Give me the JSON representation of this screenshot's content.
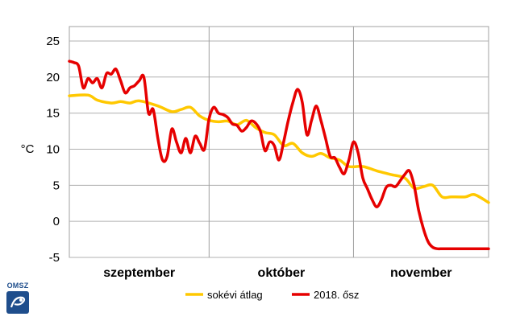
{
  "logo": {
    "text": "OMSZ",
    "icon": "omsz-logo-icon"
  },
  "chart_data": {
    "type": "line",
    "title": "",
    "xlabel": "",
    "ylabel": "°C",
    "ylim": [
      -5,
      27
    ],
    "yticks": [
      -5,
      0,
      5,
      10,
      15,
      20,
      25
    ],
    "x_start": "2018-09-01",
    "x_end": "2018-11-30",
    "x_month_labels": [
      "szeptember",
      "október",
      "november"
    ],
    "x_month_boundaries": [
      "2018-10-01",
      "2018-11-01"
    ],
    "grid": true,
    "legend_position": "bottom",
    "series": [
      {
        "name": "sokévi átlag",
        "color": "#ffc800",
        "x": [
          "2018-09-01",
          "2018-09-05",
          "2018-09-07",
          "2018-09-10",
          "2018-09-12",
          "2018-09-14",
          "2018-09-16",
          "2018-09-20",
          "2018-09-23",
          "2018-09-25",
          "2018-09-27",
          "2018-09-29",
          "2018-10-01",
          "2018-10-03",
          "2018-10-05",
          "2018-10-07",
          "2018-10-09",
          "2018-10-11",
          "2018-10-13",
          "2018-10-15",
          "2018-10-17",
          "2018-10-19",
          "2018-10-21",
          "2018-10-23",
          "2018-10-25",
          "2018-10-27",
          "2018-10-29",
          "2018-10-31",
          "2018-11-03",
          "2018-11-06",
          "2018-11-09",
          "2018-11-12",
          "2018-11-14",
          "2018-11-16",
          "2018-11-18",
          "2018-11-20",
          "2018-11-22",
          "2018-11-25",
          "2018-11-27",
          "2018-11-30"
        ],
        "y": [
          17.4,
          17.5,
          16.8,
          16.4,
          16.6,
          16.4,
          16.7,
          16.0,
          15.2,
          15.5,
          15.8,
          14.6,
          14.0,
          13.8,
          13.9,
          13.4,
          14.0,
          13.0,
          12.3,
          12.0,
          10.5,
          10.8,
          9.5,
          9.0,
          9.4,
          8.8,
          8.5,
          7.6,
          7.6,
          7.0,
          6.5,
          6.0,
          4.6,
          4.8,
          5.0,
          3.4,
          3.4,
          3.4,
          3.7,
          2.6
        ]
      },
      {
        "name": "2018. ősz",
        "color": "#e60000",
        "x": [
          "2018-09-01",
          "2018-09-02",
          "2018-09-03",
          "2018-09-04",
          "2018-09-05",
          "2018-09-06",
          "2018-09-07",
          "2018-09-08",
          "2018-09-09",
          "2018-09-10",
          "2018-09-11",
          "2018-09-12",
          "2018-09-13",
          "2018-09-14",
          "2018-09-15",
          "2018-09-16",
          "2018-09-17",
          "2018-09-18",
          "2018-09-19",
          "2018-09-20",
          "2018-09-21",
          "2018-09-22",
          "2018-09-23",
          "2018-09-24",
          "2018-09-25",
          "2018-09-26",
          "2018-09-27",
          "2018-09-28",
          "2018-09-29",
          "2018-09-30",
          "2018-10-01",
          "2018-10-02",
          "2018-10-03",
          "2018-10-04",
          "2018-10-05",
          "2018-10-06",
          "2018-10-07",
          "2018-10-08",
          "2018-10-09",
          "2018-10-10",
          "2018-10-11",
          "2018-10-12",
          "2018-10-13",
          "2018-10-14",
          "2018-10-15",
          "2018-10-16",
          "2018-10-17",
          "2018-10-18",
          "2018-10-19",
          "2018-10-20",
          "2018-10-21",
          "2018-10-22",
          "2018-10-23",
          "2018-10-24",
          "2018-10-25",
          "2018-10-26",
          "2018-10-27",
          "2018-10-28",
          "2018-10-29",
          "2018-10-30",
          "2018-10-31",
          "2018-11-01",
          "2018-11-02",
          "2018-11-03",
          "2018-11-04",
          "2018-11-05",
          "2018-11-06",
          "2018-11-07",
          "2018-11-08",
          "2018-11-09",
          "2018-11-10",
          "2018-11-11",
          "2018-11-12",
          "2018-11-13",
          "2018-11-14",
          "2018-11-15",
          "2018-11-16",
          "2018-11-17",
          "2018-11-18",
          "2018-11-19",
          "2018-11-20",
          "2018-11-21",
          "2018-11-22",
          "2018-11-23",
          "2018-11-24",
          "2018-11-25",
          "2018-11-26",
          "2018-11-27",
          "2018-11-28",
          "2018-11-29",
          "2018-11-30"
        ],
        "y": [
          22.2,
          22.0,
          21.5,
          18.5,
          19.8,
          19.2,
          19.8,
          18.5,
          20.5,
          20.4,
          21.1,
          19.5,
          17.8,
          18.5,
          18.8,
          19.5,
          20.0,
          15.0,
          15.5,
          11.5,
          8.5,
          9.0,
          12.8,
          11.0,
          9.5,
          11.5,
          9.5,
          11.8,
          10.8,
          10.0,
          14.2,
          15.8,
          15.0,
          14.8,
          14.4,
          13.5,
          13.3,
          12.5,
          13.0,
          13.9,
          13.6,
          12.5,
          9.8,
          11.0,
          10.5,
          8.5,
          11.0,
          14.0,
          16.5,
          18.3,
          16.5,
          12.0,
          14.0,
          16.0,
          14.0,
          11.5,
          9.0,
          8.8,
          7.5,
          6.6,
          8.5,
          11.0,
          9.5,
          6.0,
          4.5,
          3.0,
          2.0,
          3.0,
          4.7,
          5.0,
          4.8,
          5.6,
          6.5,
          7.0,
          5.0,
          1.5,
          -1.0,
          -2.8,
          -3.6,
          -3.8,
          -3.8,
          -3.8,
          -3.8,
          -3.8,
          -3.8,
          -3.8,
          -3.8,
          -3.8,
          -3.8,
          -3.8,
          -3.8
        ]
      }
    ]
  }
}
